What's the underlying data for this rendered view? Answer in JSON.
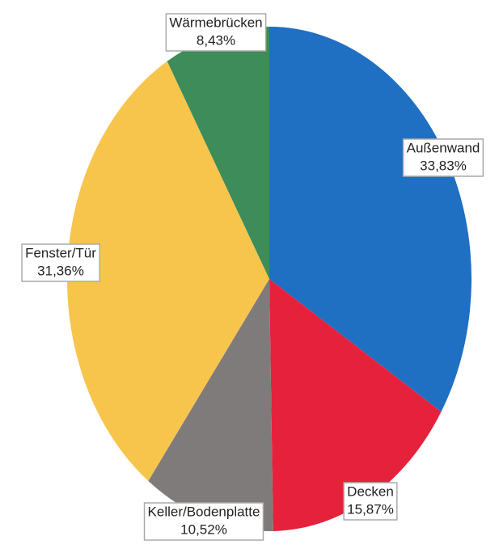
{
  "chart_data": {
    "type": "pie",
    "categories": [
      "Außenwand",
      "Decken",
      "Keller/Bodenplatte",
      "Fenster/Tür",
      "Wärmebrücken"
    ],
    "values": [
      33.83,
      15.87,
      10.52,
      31.36,
      8.43
    ],
    "value_labels": [
      "33,83%",
      "15,87%",
      "10,52%",
      "31,36%",
      "8,43%"
    ],
    "colors": [
      "#1f6fc2",
      "#e6213c",
      "#807b7b",
      "#f8c54c",
      "#3d8c5a"
    ]
  }
}
